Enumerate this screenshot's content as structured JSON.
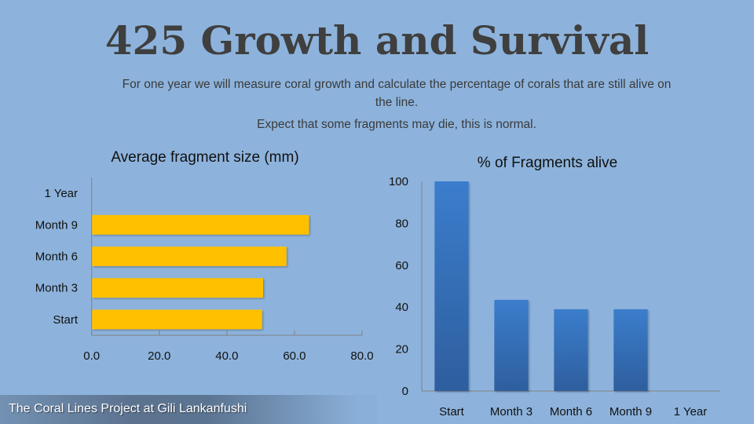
{
  "header": {
    "title": "425 Growth and Survival",
    "description_line1": "For one year we will measure coral growth and calculate the percentage of corals that are still alive on the line.",
    "description_line2": "Expect that some fragments may die, this is normal."
  },
  "footer": {
    "text": "The Coral Lines Project at Gili Lankanfushi"
  },
  "colors": {
    "background": "#8db3dc",
    "size_bars": "#ffc000",
    "alive_bars_top": "#3b7dcc",
    "alive_bars_bottom": "#2e5e9e"
  },
  "chart_data": [
    {
      "type": "bar",
      "orientation": "horizontal",
      "title": "Average fragment size (mm)",
      "categories": [
        "Start",
        "Month 3",
        "Month 6",
        "Month 9",
        "1 Year"
      ],
      "values": [
        50.3,
        50.6,
        57.5,
        64.2,
        null
      ],
      "xlabel": "",
      "ylabel": "",
      "xlim": [
        0,
        80
      ],
      "xticks": [
        "0.0",
        "20.0",
        "40.0",
        "60.0",
        "80.0"
      ],
      "grid": false,
      "legend": "none"
    },
    {
      "type": "bar",
      "orientation": "vertical",
      "title": "% of Fragments alive",
      "categories": [
        "Start",
        "Month 3",
        "Month 6",
        "Month 9",
        "1 Year"
      ],
      "values": [
        100,
        43.5,
        39,
        39,
        null
      ],
      "xlabel": "",
      "ylabel": "",
      "ylim": [
        0,
        100
      ],
      "yticks": [
        "0",
        "20",
        "40",
        "60",
        "80",
        "100"
      ],
      "grid": false,
      "legend": "none"
    }
  ]
}
